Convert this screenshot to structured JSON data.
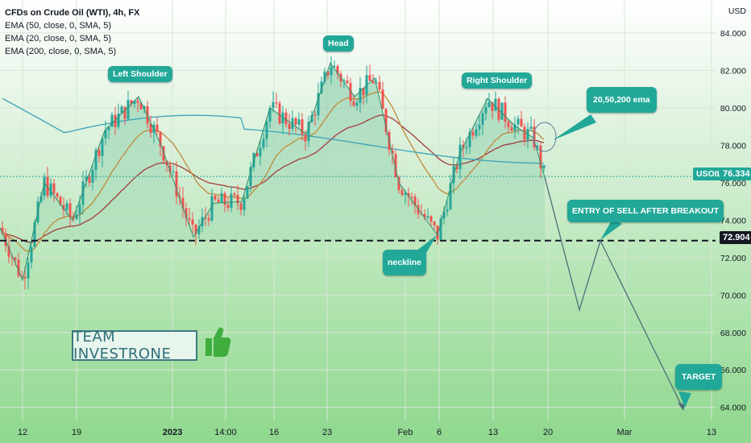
{
  "legend": {
    "title": "CFDs on Crude Oil (WTI), 4h, FX",
    "indicators": [
      "EMA (50, close, 0, SMA, 5)",
      "EMA (20, close, 0, SMA, 5)",
      "EMA (200, close, 0, SMA, 5)"
    ]
  },
  "axis": {
    "currency": "USD",
    "y_ticks": [
      "84.000",
      "82.000",
      "80.000",
      "78.000",
      "76.000",
      "74.000",
      "72.000",
      "70.000",
      "68.000",
      "66.000",
      "64.000"
    ],
    "x_ticks": [
      "12",
      "19",
      "2023",
      "14:00",
      "16",
      "23",
      "Feb",
      "6",
      "13",
      "20",
      "Mar",
      "13"
    ]
  },
  "labels": {
    "left_shoulder": "Left Shoulder",
    "head": "Head",
    "right_shoulder": "Right Shoulder",
    "neckline": "neckline",
    "ema_note": "20,50,200 ema",
    "entry": "ENTRY OF SELL AFTER BREAKOUT",
    "target": "TARGET",
    "team": "TEAM INVESTRONE"
  },
  "price_tags": {
    "symbol": "USOIL",
    "last_price": "76.334",
    "neckline_price": "72.904"
  },
  "colors": {
    "candle_up": "#26a69a",
    "candle_down": "#ef5350",
    "ema_50": "#a33d3d",
    "ema_20": "#c28a3a",
    "ema_200": "#3aa3b8",
    "pattern_line": "#2e8f6f",
    "callout_bg": "#22a898",
    "neckline_line": "#131722"
  },
  "chart_data": {
    "type": "line",
    "title": "CFDs on Crude Oil (WTI), 4h, FX",
    "ylim": [
      63.3,
      85.2
    ],
    "x_categories": [
      "12",
      "19",
      "2023",
      "14:00",
      "16",
      "23",
      "Feb",
      "6",
      "13",
      "20",
      "Mar",
      "13"
    ],
    "pattern": "head and shoulders",
    "series": [
      {
        "name": "USOIL",
        "points": [
          {
            "x": "12",
            "y": 70.5
          },
          {
            "x": "19",
            "y": 74.5
          },
          {
            "x": "19",
            "y": 78.5
          },
          {
            "x": "19",
            "y": 80.5
          },
          {
            "x": "2023",
            "y": 78.0
          },
          {
            "x": "2023",
            "y": 73.2
          },
          {
            "x": "14:00",
            "y": 74.5
          },
          {
            "x": "16",
            "y": 79.5
          },
          {
            "x": "23",
            "y": 82.4
          },
          {
            "x": "23",
            "y": 80.8
          },
          {
            "x": "Feb",
            "y": 77.0
          },
          {
            "x": "6",
            "y": 73.2
          },
          {
            "x": "6",
            "y": 77.5
          },
          {
            "x": "13",
            "y": 80.5
          },
          {
            "x": "13",
            "y": 79.0
          },
          {
            "x": "20",
            "y": 76.3
          }
        ]
      }
    ],
    "levels": [
      {
        "value": 72.904
      },
      {
        "value": 76.334
      }
    ],
    "projection": [
      {
        "x": "20",
        "y": 76.3
      },
      {
        "x": "20",
        "y": 69.2
      },
      {
        "x": "Mar",
        "y": 72.9
      },
      {
        "x": "13",
        "y": 63.9
      }
    ]
  }
}
